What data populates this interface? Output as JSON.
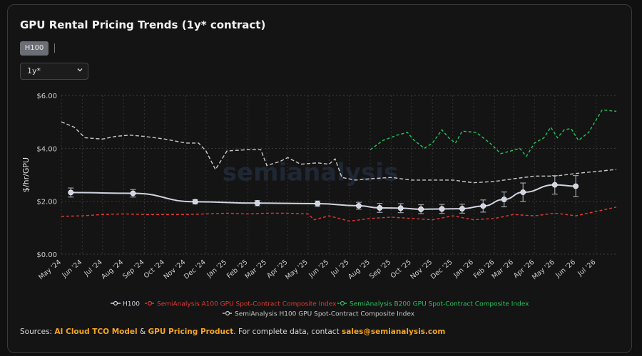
{
  "title": "GPU Rental Pricing Trends (1y* contract)",
  "tabs": [
    "H100"
  ],
  "select": {
    "value": "1y*"
  },
  "footer": {
    "prefix": "Sources: ",
    "link1": "AI Cloud TCO Model",
    "amp": " & ",
    "link2": "GPU Pricing Product",
    "middle": ". For complete data, contact ",
    "email": "sales@semianalysis.com"
  },
  "colors": {
    "h100": "#d0d4e0",
    "a100": "#e53935",
    "b200": "#22c55e",
    "h100idx": "#c8c8c8",
    "accent": "#f5a623"
  },
  "chart_data": {
    "type": "line",
    "title": "GPU Rental Pricing Trends (1y* contract)",
    "ylabel": "$/hr/GPU",
    "ylim": [
      0,
      6
    ],
    "yticks": [
      "$0.00",
      "$2.00",
      "$4.00",
      "$6.00"
    ],
    "xrange": [
      "2024-05-01",
      "2026-07-31"
    ],
    "xticks": [
      "May '24",
      "Jun '24",
      "Jul '24",
      "Aug '24",
      "Sep '24",
      "Oct '24",
      "Nov '24",
      "Dec '24",
      "Jan '25",
      "Feb '25",
      "Mar '25",
      "Apr '25",
      "May '25",
      "Jun '25",
      "Jul '25",
      "Aug '25",
      "Sep '25",
      "Oct '25",
      "Nov '25",
      "Dec '25",
      "Jan '26",
      "Feb '26",
      "Mar '26",
      "Apr '26",
      "May '26",
      "Jun '26",
      "Jul '26"
    ],
    "grid": true,
    "legend_position": "bottom",
    "watermark": "semianalysis",
    "series": [
      {
        "name": "H100",
        "style": "solid",
        "markers": true,
        "points": [
          {
            "x": "2024-05-15",
            "y": 2.33,
            "err": 0.17
          },
          {
            "x": "2024-08-15",
            "y": 2.3,
            "err": 0.14
          },
          {
            "x": "2024-11-15",
            "y": 1.98,
            "err": 0.08
          },
          {
            "x": "2025-02-15",
            "y": 1.93,
            "err": 0.1
          },
          {
            "x": "2025-05-15",
            "y": 1.91,
            "err": 0.1
          },
          {
            "x": "2025-07-15",
            "y": 1.83,
            "err": 0.13
          },
          {
            "x": "2025-08-15",
            "y": 1.75,
            "err": 0.17
          },
          {
            "x": "2025-09-15",
            "y": 1.74,
            "err": 0.17
          },
          {
            "x": "2025-10-15",
            "y": 1.7,
            "err": 0.17
          },
          {
            "x": "2025-11-15",
            "y": 1.71,
            "err": 0.17
          },
          {
            "x": "2025-12-15",
            "y": 1.72,
            "err": 0.17
          },
          {
            "x": "2026-01-15",
            "y": 1.82,
            "err": 0.23
          },
          {
            "x": "2026-02-15",
            "y": 2.07,
            "err": 0.28
          },
          {
            "x": "2026-03-15",
            "y": 2.34,
            "err": 0.35
          },
          {
            "x": "2026-05-01",
            "y": 2.62,
            "err": 0.35
          },
          {
            "x": "2026-06-01",
            "y": 2.57,
            "err": 0.4
          }
        ]
      },
      {
        "name": "SemiAnalysis A100 GPU Spot-Contract Composite Index",
        "style": "dashed",
        "points": [
          {
            "x": "2024-05-01",
            "y": 1.43
          },
          {
            "x": "2024-06-01",
            "y": 1.45
          },
          {
            "x": "2024-07-01",
            "y": 1.5
          },
          {
            "x": "2024-08-01",
            "y": 1.52
          },
          {
            "x": "2024-09-01",
            "y": 1.5
          },
          {
            "x": "2024-10-01",
            "y": 1.5
          },
          {
            "x": "2024-11-01",
            "y": 1.5
          },
          {
            "x": "2024-12-01",
            "y": 1.52
          },
          {
            "x": "2025-01-01",
            "y": 1.55
          },
          {
            "x": "2025-02-01",
            "y": 1.52
          },
          {
            "x": "2025-03-01",
            "y": 1.55
          },
          {
            "x": "2025-04-01",
            "y": 1.55
          },
          {
            "x": "2025-05-01",
            "y": 1.52
          },
          {
            "x": "2025-05-10",
            "y": 1.3
          },
          {
            "x": "2025-06-01",
            "y": 1.45
          },
          {
            "x": "2025-07-01",
            "y": 1.25
          },
          {
            "x": "2025-08-01",
            "y": 1.35
          },
          {
            "x": "2025-09-01",
            "y": 1.4
          },
          {
            "x": "2025-10-01",
            "y": 1.35
          },
          {
            "x": "2025-11-01",
            "y": 1.3
          },
          {
            "x": "2025-12-01",
            "y": 1.45
          },
          {
            "x": "2026-01-01",
            "y": 1.3
          },
          {
            "x": "2026-02-01",
            "y": 1.35
          },
          {
            "x": "2026-03-01",
            "y": 1.5
          },
          {
            "x": "2026-04-01",
            "y": 1.45
          },
          {
            "x": "2026-05-01",
            "y": 1.55
          },
          {
            "x": "2026-06-01",
            "y": 1.45
          },
          {
            "x": "2026-07-31",
            "y": 1.78
          }
        ]
      },
      {
        "name": "SemiAnalysis B200 GPU Spot-Contract Composite Index",
        "style": "dashed",
        "points": [
          {
            "x": "2025-08-01",
            "y": 3.95
          },
          {
            "x": "2025-08-20",
            "y": 4.3
          },
          {
            "x": "2025-09-10",
            "y": 4.5
          },
          {
            "x": "2025-09-25",
            "y": 4.6
          },
          {
            "x": "2025-10-05",
            "y": 4.3
          },
          {
            "x": "2025-10-20",
            "y": 4.0
          },
          {
            "x": "2025-11-01",
            "y": 4.2
          },
          {
            "x": "2025-11-15",
            "y": 4.7
          },
          {
            "x": "2025-11-25",
            "y": 4.4
          },
          {
            "x": "2025-12-05",
            "y": 4.2
          },
          {
            "x": "2025-12-15",
            "y": 4.65
          },
          {
            "x": "2026-01-05",
            "y": 4.6
          },
          {
            "x": "2026-01-25",
            "y": 4.2
          },
          {
            "x": "2026-02-10",
            "y": 3.8
          },
          {
            "x": "2026-02-25",
            "y": 3.9
          },
          {
            "x": "2026-03-10",
            "y": 4.0
          },
          {
            "x": "2026-03-20",
            "y": 3.7
          },
          {
            "x": "2026-04-01",
            "y": 4.2
          },
          {
            "x": "2026-04-15",
            "y": 4.4
          },
          {
            "x": "2026-04-25",
            "y": 4.8
          },
          {
            "x": "2026-05-05",
            "y": 4.4
          },
          {
            "x": "2026-05-15",
            "y": 4.7
          },
          {
            "x": "2026-05-25",
            "y": 4.75
          },
          {
            "x": "2026-06-05",
            "y": 4.3
          },
          {
            "x": "2026-06-20",
            "y": 4.6
          },
          {
            "x": "2026-07-10",
            "y": 5.45
          },
          {
            "x": "2026-07-31",
            "y": 5.4
          }
        ]
      },
      {
        "name": "SemiAnalysis H100 GPU Spot-Contract Composite Index",
        "style": "dashed",
        "points": [
          {
            "x": "2024-05-01",
            "y": 5.0
          },
          {
            "x": "2024-05-20",
            "y": 4.8
          },
          {
            "x": "2024-06-05",
            "y": 4.4
          },
          {
            "x": "2024-07-01",
            "y": 4.35
          },
          {
            "x": "2024-07-20",
            "y": 4.45
          },
          {
            "x": "2024-08-10",
            "y": 4.5
          },
          {
            "x": "2024-09-01",
            "y": 4.45
          },
          {
            "x": "2024-10-01",
            "y": 4.35
          },
          {
            "x": "2024-11-01",
            "y": 4.2
          },
          {
            "x": "2024-11-20",
            "y": 4.2
          },
          {
            "x": "2024-12-01",
            "y": 3.9
          },
          {
            "x": "2024-12-15",
            "y": 3.2
          },
          {
            "x": "2025-01-01",
            "y": 3.9
          },
          {
            "x": "2025-02-01",
            "y": 3.95
          },
          {
            "x": "2025-02-20",
            "y": 3.95
          },
          {
            "x": "2025-03-01",
            "y": 3.35
          },
          {
            "x": "2025-03-20",
            "y": 3.5
          },
          {
            "x": "2025-04-01",
            "y": 3.65
          },
          {
            "x": "2025-04-20",
            "y": 3.4
          },
          {
            "x": "2025-05-15",
            "y": 3.45
          },
          {
            "x": "2025-06-01",
            "y": 3.4
          },
          {
            "x": "2025-06-10",
            "y": 3.6
          },
          {
            "x": "2025-06-20",
            "y": 2.9
          },
          {
            "x": "2025-07-10",
            "y": 2.8
          },
          {
            "x": "2025-08-01",
            "y": 2.85
          },
          {
            "x": "2025-09-01",
            "y": 2.9
          },
          {
            "x": "2025-10-01",
            "y": 2.8
          },
          {
            "x": "2025-11-01",
            "y": 2.8
          },
          {
            "x": "2025-12-01",
            "y": 2.8
          },
          {
            "x": "2026-01-01",
            "y": 2.7
          },
          {
            "x": "2026-02-01",
            "y": 2.75
          },
          {
            "x": "2026-03-01",
            "y": 2.85
          },
          {
            "x": "2026-04-01",
            "y": 2.95
          },
          {
            "x": "2026-05-01",
            "y": 2.95
          },
          {
            "x": "2026-06-01",
            "y": 3.05
          },
          {
            "x": "2026-07-31",
            "y": 3.2
          }
        ]
      }
    ]
  }
}
